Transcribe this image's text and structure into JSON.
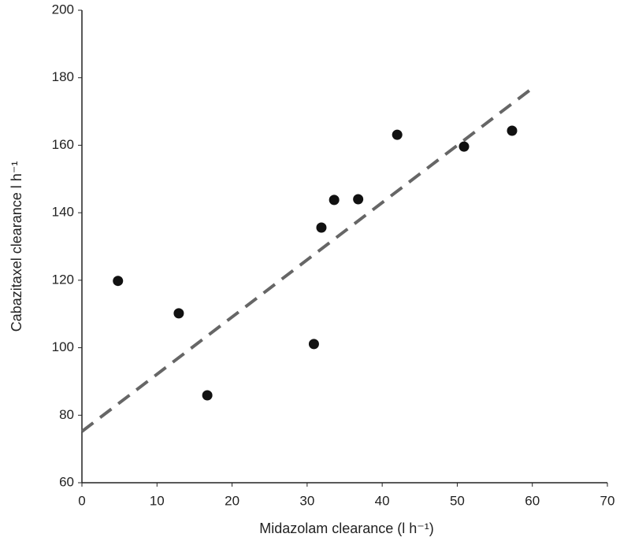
{
  "chart_data": {
    "type": "scatter",
    "x_label": "Midazolam clearance (l h⁻¹)",
    "y_label": "Cabazitaxel clearance l h⁻¹",
    "x": [
      4.8,
      12.9,
      16.7,
      30.9,
      31.9,
      33.6,
      36.8,
      42.0,
      50.9,
      57.3
    ],
    "values": [
      119.8,
      110.2,
      85.9,
      101.1,
      135.6,
      143.8,
      144.0,
      163.1,
      159.6,
      164.3
    ],
    "color": "#111111",
    "trendline": {
      "x": [
        0,
        60
      ],
      "y": [
        75.2,
        176.9
      ],
      "color": "#666666",
      "dashed": true
    },
    "xlim": [
      0,
      70
    ],
    "xticks": [
      0,
      10,
      20,
      30,
      40,
      50,
      60,
      70
    ],
    "ylim": [
      60,
      200
    ],
    "yticks": [
      60,
      80,
      100,
      120,
      140,
      160,
      180,
      200
    ],
    "grid": false
  }
}
